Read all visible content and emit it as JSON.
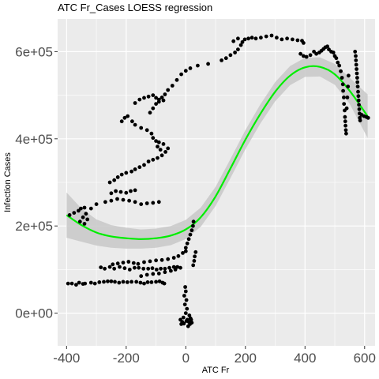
{
  "chart_data": {
    "type": "scatter",
    "title": "ATC Fr_Cases LOESS regression",
    "xlabel": "ATC Fr",
    "ylabel": "Infection Cases",
    "xlim": [
      -430,
      635
    ],
    "ylim": [
      -75000,
      675000
    ],
    "x_ticks": [
      -400,
      -200,
      0,
      200,
      400,
      600
    ],
    "x_tick_labels": [
      "-400",
      "-200",
      "0",
      "200",
      "400",
      "600"
    ],
    "y_ticks": [
      0,
      200000,
      400000,
      600000
    ],
    "y_tick_labels": [
      "0e+00",
      "2e+05",
      "4e+05",
      "6e+05"
    ],
    "grid": true,
    "colors": {
      "panel_background": "#ebebeb",
      "grid": "#ffffff",
      "points": "#000000",
      "loess_line": "#00ee00",
      "confidence_band": "#c8c8c8"
    },
    "points": [
      [
        -395,
        68000
      ],
      [
        -382,
        68000
      ],
      [
        -368,
        65000
      ],
      [
        -358,
        70000
      ],
      [
        -345,
        67000
      ],
      [
        -338,
        68000
      ],
      [
        -318,
        70000
      ],
      [
        -305,
        68000
      ],
      [
        -290,
        71000
      ],
      [
        -275,
        72000
      ],
      [
        -262,
        73000
      ],
      [
        -250,
        73000
      ],
      [
        -238,
        72000
      ],
      [
        -224,
        70000
      ],
      [
        -210,
        72000
      ],
      [
        -196,
        71000
      ],
      [
        -182,
        72000
      ],
      [
        -166,
        72000
      ],
      [
        -152,
        70000
      ],
      [
        -140,
        68000
      ],
      [
        -128,
        71000
      ],
      [
        -115,
        71000
      ],
      [
        -100,
        72000
      ],
      [
        -88,
        73000
      ],
      [
        -78,
        70000
      ],
      [
        -72,
        68000
      ],
      [
        -285,
        105000
      ],
      [
        -272,
        102000
      ],
      [
        -255,
        106000
      ],
      [
        -240,
        102000
      ],
      [
        -222,
        106000
      ],
      [
        -205,
        103000
      ],
      [
        -188,
        100000
      ],
      [
        -172,
        104000
      ],
      [
        -158,
        104000
      ],
      [
        -142,
        102000
      ],
      [
        -126,
        102000
      ],
      [
        -112,
        103000
      ],
      [
        -98,
        100000
      ],
      [
        -84,
        102000
      ],
      [
        -70,
        102000
      ],
      [
        -55,
        104000
      ],
      [
        -40,
        106000
      ],
      [
        -28,
        106000
      ],
      [
        -18,
        104000
      ],
      [
        -245,
        112000
      ],
      [
        -228,
        114000
      ],
      [
        -210,
        116000
      ],
      [
        -192,
        118000
      ],
      [
        -175,
        115000
      ],
      [
        -160,
        113000
      ],
      [
        -140,
        117000
      ],
      [
        -120,
        119000
      ],
      [
        -100,
        121000
      ],
      [
        -80,
        122000
      ],
      [
        -60,
        124000
      ],
      [
        -40,
        127000
      ],
      [
        -25,
        131000
      ],
      [
        -10,
        138000
      ],
      [
        0,
        142000
      ],
      [
        -150,
        85000
      ],
      [
        -130,
        88000
      ],
      [
        -110,
        90000
      ],
      [
        -90,
        91000
      ],
      [
        -70,
        94000
      ],
      [
        -50,
        97000
      ],
      [
        -35,
        100000
      ],
      [
        0,
        150000
      ],
      [
        5,
        160000
      ],
      [
        10,
        170000
      ],
      [
        15,
        180000
      ],
      [
        20,
        190000
      ],
      [
        24,
        200000
      ],
      [
        26,
        210000
      ],
      [
        -2,
        60000
      ],
      [
        0,
        50000
      ],
      [
        -5,
        40000
      ],
      [
        2,
        30000
      ],
      [
        -3,
        20000
      ],
      [
        4,
        10000
      ],
      [
        0,
        0
      ],
      [
        -8,
        -10000
      ],
      [
        5,
        -15000
      ],
      [
        10,
        -20000
      ],
      [
        14,
        -25000
      ],
      [
        -12,
        -20000
      ],
      [
        18,
        -15000
      ],
      [
        8,
        -30000
      ],
      [
        -18,
        -15000
      ],
      [
        -15,
        -25000
      ],
      [
        12,
        -5000
      ],
      [
        2,
        -18000
      ],
      [
        -6,
        -24000
      ],
      [
        20,
        -22000
      ],
      [
        16,
        -12000
      ],
      [
        25,
        110000
      ],
      [
        28,
        120000
      ],
      [
        30,
        130000
      ],
      [
        33,
        140000
      ],
      [
        -390,
        225000
      ],
      [
        -375,
        230000
      ],
      [
        -360,
        235000
      ],
      [
        -352,
        240000
      ],
      [
        -340,
        242000
      ],
      [
        -335,
        228000
      ],
      [
        -345,
        220000
      ],
      [
        -355,
        210000
      ],
      [
        -340,
        205000
      ],
      [
        -330,
        215000
      ],
      [
        -318,
        240000
      ],
      [
        -300,
        250000
      ],
      [
        -270,
        255000
      ],
      [
        -250,
        258000
      ],
      [
        -230,
        262000
      ],
      [
        -210,
        260000
      ],
      [
        -190,
        258000
      ],
      [
        -170,
        255000
      ],
      [
        -150,
        250000
      ],
      [
        -130,
        252000
      ],
      [
        -110,
        253000
      ],
      [
        -90,
        255000
      ],
      [
        -250,
        275000
      ],
      [
        -235,
        280000
      ],
      [
        -218,
        278000
      ],
      [
        -200,
        276000
      ],
      [
        -185,
        280000
      ],
      [
        -170,
        282000
      ],
      [
        -255,
        300000
      ],
      [
        -240,
        305000
      ],
      [
        -228,
        312000
      ],
      [
        -215,
        318000
      ],
      [
        -200,
        322000
      ],
      [
        -182,
        325000
      ],
      [
        -170,
        330000
      ],
      [
        -155,
        335000
      ],
      [
        -140,
        340000
      ],
      [
        -125,
        348000
      ],
      [
        -110,
        352000
      ],
      [
        -95,
        356000
      ],
      [
        -80,
        362000
      ],
      [
        -68,
        370000
      ],
      [
        -60,
        378000
      ],
      [
        -75,
        388000
      ],
      [
        -90,
        392000
      ],
      [
        -215,
        440000
      ],
      [
        -205,
        448000
      ],
      [
        -195,
        452000
      ],
      [
        -180,
        440000
      ],
      [
        -170,
        432000
      ],
      [
        -150,
        425000
      ],
      [
        -130,
        420000
      ],
      [
        -115,
        412000
      ],
      [
        -110,
        402000
      ],
      [
        -100,
        395000
      ],
      [
        -95,
        382000
      ],
      [
        -85,
        375000
      ],
      [
        -170,
        482000
      ],
      [
        -155,
        490000
      ],
      [
        -140,
        494000
      ],
      [
        -125,
        497000
      ],
      [
        -110,
        500000
      ],
      [
        -100,
        494000
      ],
      [
        -90,
        490000
      ],
      [
        -80,
        495000
      ],
      [
        -70,
        502000
      ],
      [
        -60,
        512000
      ],
      [
        -45,
        522000
      ],
      [
        -30,
        535000
      ],
      [
        -15,
        548000
      ],
      [
        0,
        556000
      ],
      [
        15,
        562000
      ],
      [
        40,
        568000
      ],
      [
        75,
        572000
      ],
      [
        -120,
        460000
      ],
      [
        -110,
        470000
      ],
      [
        -100,
        480000
      ],
      [
        -90,
        485000
      ],
      [
        -75,
        488000
      ],
      [
        120,
        580000
      ],
      [
        135,
        585000
      ],
      [
        150,
        592000
      ],
      [
        165,
        598000
      ],
      [
        175,
        605000
      ],
      [
        185,
        615000
      ],
      [
        190,
        622000
      ],
      [
        198,
        628000
      ],
      [
        210,
        630000
      ],
      [
        222,
        632000
      ],
      [
        160,
        624000
      ],
      [
        175,
        630000
      ],
      [
        235,
        630000
      ],
      [
        252,
        632000
      ],
      [
        270,
        635000
      ],
      [
        288,
        637000
      ],
      [
        305,
        632000
      ],
      [
        322,
        628000
      ],
      [
        340,
        630000
      ],
      [
        358,
        628000
      ],
      [
        375,
        626000
      ],
      [
        390,
        625000
      ],
      [
        395,
        620000
      ],
      [
        385,
        595000
      ],
      [
        395,
        590000
      ],
      [
        405,
        588000
      ],
      [
        418,
        592000
      ],
      [
        430,
        600000
      ],
      [
        438,
        595000
      ],
      [
        448,
        598000
      ],
      [
        455,
        602000
      ],
      [
        462,
        606000
      ],
      [
        468,
        610000
      ],
      [
        475,
        612000
      ],
      [
        480,
        605000
      ],
      [
        488,
        600000
      ],
      [
        495,
        598000
      ],
      [
        500,
        590000
      ],
      [
        505,
        585000
      ],
      [
        510,
        575000
      ],
      [
        515,
        568000
      ],
      [
        520,
        555000
      ],
      [
        524,
        540000
      ],
      [
        527,
        525000
      ],
      [
        528,
        510000
      ],
      [
        530,
        495000
      ],
      [
        531,
        480000
      ],
      [
        533,
        465000
      ],
      [
        534,
        450000
      ],
      [
        535,
        440000
      ],
      [
        536,
        430000
      ],
      [
        537,
        420000
      ],
      [
        538,
        412000
      ],
      [
        540,
        470000
      ],
      [
        542,
        495000
      ],
      [
        544,
        520000
      ],
      [
        546,
        545000
      ],
      [
        568,
        600000
      ],
      [
        570,
        590000
      ],
      [
        571,
        580000
      ],
      [
        572,
        570000
      ],
      [
        573,
        560000
      ],
      [
        574,
        550000
      ],
      [
        575,
        540000
      ],
      [
        576,
        530000
      ],
      [
        577,
        520000
      ],
      [
        578,
        508000
      ],
      [
        579,
        498000
      ],
      [
        580,
        488000
      ],
      [
        581,
        478000
      ],
      [
        582,
        468000
      ],
      [
        583,
        458000
      ],
      [
        584,
        448000
      ],
      [
        585,
        442000
      ],
      [
        590,
        455000
      ],
      [
        598,
        452000
      ],
      [
        606,
        450000
      ],
      [
        612,
        448000
      ]
    ],
    "loess": {
      "x": [
        -400,
        -350,
        -300,
        -250,
        -200,
        -150,
        -100,
        -50,
        0,
        50,
        100,
        150,
        200,
        250,
        300,
        350,
        400,
        450,
        500,
        550,
        610
      ],
      "y": [
        225000,
        202000,
        185000,
        176000,
        172000,
        170000,
        172000,
        178000,
        192000,
        220000,
        268000,
        332000,
        398000,
        457000,
        508000,
        545000,
        564000,
        565000,
        548000,
        510000,
        452000
      ],
      "se": [
        52000,
        38000,
        30000,
        26000,
        24000,
        22000,
        22000,
        22000,
        22000,
        22000,
        22000,
        22000,
        22000,
        22000,
        22000,
        22000,
        22000,
        22000,
        24000,
        30000,
        50000
      ]
    }
  }
}
